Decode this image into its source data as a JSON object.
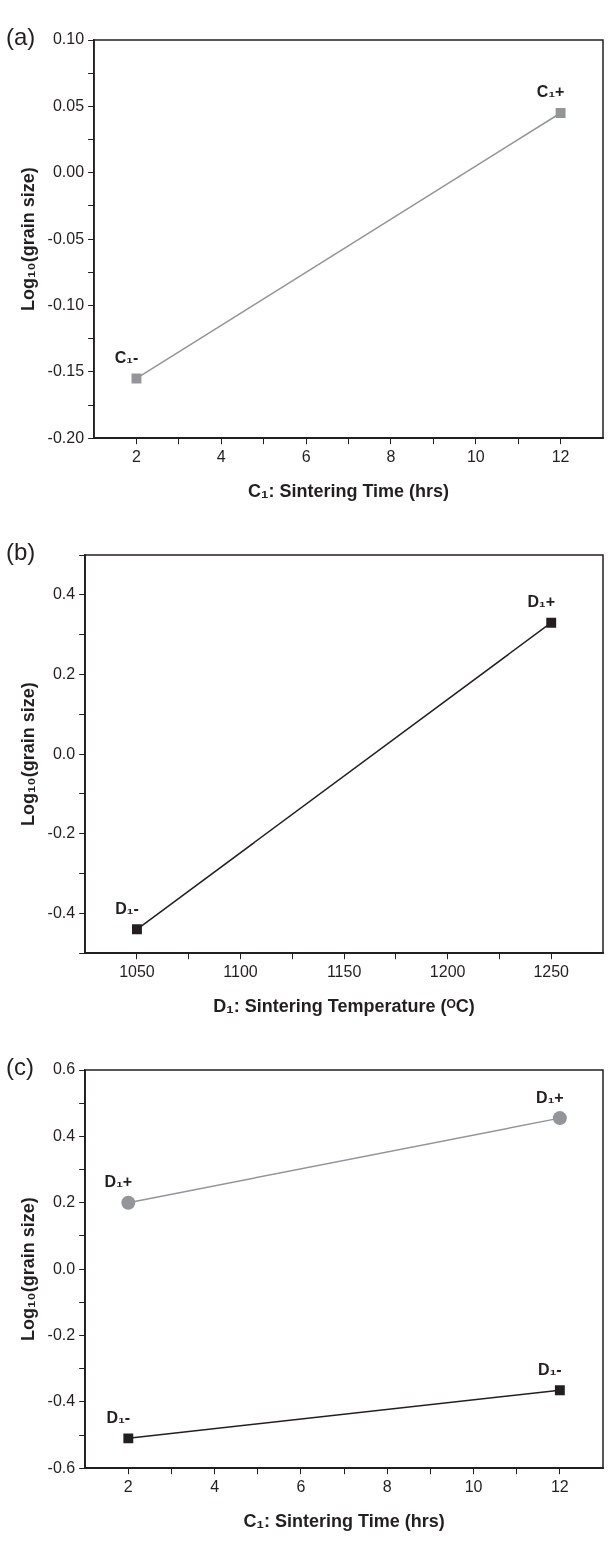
{
  "chart_data": [
    {
      "type": "line",
      "title": "(a)",
      "xlabel": "C₁: Sintering Time (hrs)",
      "ylabel": "Log₁₀(grain size)",
      "marker": "square",
      "grid": false,
      "legend": false,
      "x": [
        2,
        12
      ],
      "series": [
        {
          "color": "#939598",
          "values": [
            -0.155,
            0.045
          ]
        }
      ],
      "xlim": [
        1,
        13
      ],
      "xticks": [
        2,
        {
          "value": 3,
          "label": null
        },
        4,
        {
          "value": 5,
          "label": null
        },
        6,
        {
          "value": 7,
          "label": null
        },
        8,
        {
          "value": 9,
          "label": null
        },
        10,
        {
          "value": 11,
          "label": null
        },
        12
      ],
      "ylim": [
        -0.2,
        0.1
      ],
      "yticks": [
        {
          "value": -0.2,
          "label": "-0.20"
        },
        {
          "value": -0.175,
          "label": null
        },
        {
          "value": -0.15,
          "label": "-0.15"
        },
        {
          "value": -0.125,
          "label": null
        },
        {
          "value": -0.1,
          "label": "-0.10"
        },
        {
          "value": -0.075,
          "label": null
        },
        {
          "value": -0.05,
          "label": "-0.05"
        },
        {
          "value": -0.025,
          "label": null
        },
        {
          "value": 0,
          "label": "0.00"
        },
        {
          "value": 0.025,
          "label": null
        },
        {
          "value": 0.05,
          "label": "0.05"
        },
        {
          "value": 0.075,
          "label": null
        },
        {
          "value": 0.1,
          "label": "0.10"
        }
      ],
      "annotations": [
        {
          "text": "C₁-",
          "x": 2,
          "y": -0.155
        },
        {
          "text": "C₁+",
          "x": 12,
          "y": 0.045
        }
      ]
    },
    {
      "type": "line",
      "title": "(b)",
      "xlabel": "D₁: Sintering Temperature (ᴼC)",
      "ylabel": "Log₁₀(grain size)",
      "marker": "square",
      "grid": false,
      "legend": false,
      "x": [
        1050,
        1250
      ],
      "series": [
        {
          "color": "#231f20",
          "values": [
            -0.44,
            0.33
          ]
        }
      ],
      "xlim": [
        1025,
        1275
      ],
      "xticks": [
        1050,
        {
          "value": 1075,
          "label": null
        },
        1100,
        {
          "value": 1125,
          "label": null
        },
        1150,
        {
          "value": 1175,
          "label": null
        },
        1200,
        {
          "value": 1225,
          "label": null
        },
        1250
      ],
      "ylim": [
        -0.5,
        0.5
      ],
      "yticks": [
        {
          "value": -0.5,
          "label": null
        },
        {
          "value": -0.4,
          "label": "-0.4"
        },
        {
          "value": -0.3,
          "label": null
        },
        {
          "value": -0.2,
          "label": "-0.2"
        },
        {
          "value": -0.1,
          "label": null
        },
        {
          "value": 0,
          "label": "0.0"
        },
        {
          "value": 0.1,
          "label": null
        },
        {
          "value": 0.2,
          "label": "0.2"
        },
        {
          "value": 0.3,
          "label": null
        },
        {
          "value": 0.4,
          "label": "0.4"
        },
        {
          "value": 0.5,
          "label": null
        }
      ],
      "annotations": [
        {
          "text": "D₁-",
          "x": 1050,
          "y": -0.44
        },
        {
          "text": "D₁+",
          "x": 1250,
          "y": 0.33
        }
      ]
    },
    {
      "type": "line",
      "title": "(c)",
      "xlabel": "C₁: Sintering Time (hrs)",
      "ylabel": "Log₁₀(grain size)",
      "grid": false,
      "legend": false,
      "x": [
        2,
        12
      ],
      "series": [
        {
          "color": "#939598",
          "marker": "circle",
          "values": [
            0.2,
            0.455
          ]
        },
        {
          "color": "#231f20",
          "marker": "square",
          "values": [
            -0.51,
            -0.365
          ]
        }
      ],
      "xlim": [
        1,
        13
      ],
      "xticks": [
        2,
        {
          "value": 3,
          "label": null
        },
        4,
        {
          "value": 5,
          "label": null
        },
        6,
        {
          "value": 7,
          "label": null
        },
        8,
        {
          "value": 9,
          "label": null
        },
        10,
        {
          "value": 11,
          "label": null
        },
        12
      ],
      "ylim": [
        -0.6,
        0.6
      ],
      "yticks": [
        {
          "value": -0.6,
          "label": "-0.6"
        },
        {
          "value": -0.5,
          "label": null
        },
        {
          "value": -0.4,
          "label": "-0.4"
        },
        {
          "value": -0.3,
          "label": null
        },
        {
          "value": -0.2,
          "label": "-0.2"
        },
        {
          "value": -0.1,
          "label": null
        },
        {
          "value": 0,
          "label": "0.0"
        },
        {
          "value": 0.1,
          "label": null
        },
        {
          "value": 0.2,
          "label": "0.2"
        },
        {
          "value": 0.3,
          "label": null
        },
        {
          "value": 0.4,
          "label": "0.4"
        },
        {
          "value": 0.5,
          "label": null
        },
        {
          "value": 0.6,
          "label": "0.6"
        }
      ],
      "annotations": [
        {
          "text": "D₁+",
          "x": 2,
          "y": 0.2
        },
        {
          "text": "D₁+",
          "x": 12,
          "y": 0.455
        },
        {
          "text": "D₁-",
          "x": 2,
          "y": -0.51
        },
        {
          "text": "D₁-",
          "x": 12,
          "y": -0.365
        }
      ]
    }
  ]
}
